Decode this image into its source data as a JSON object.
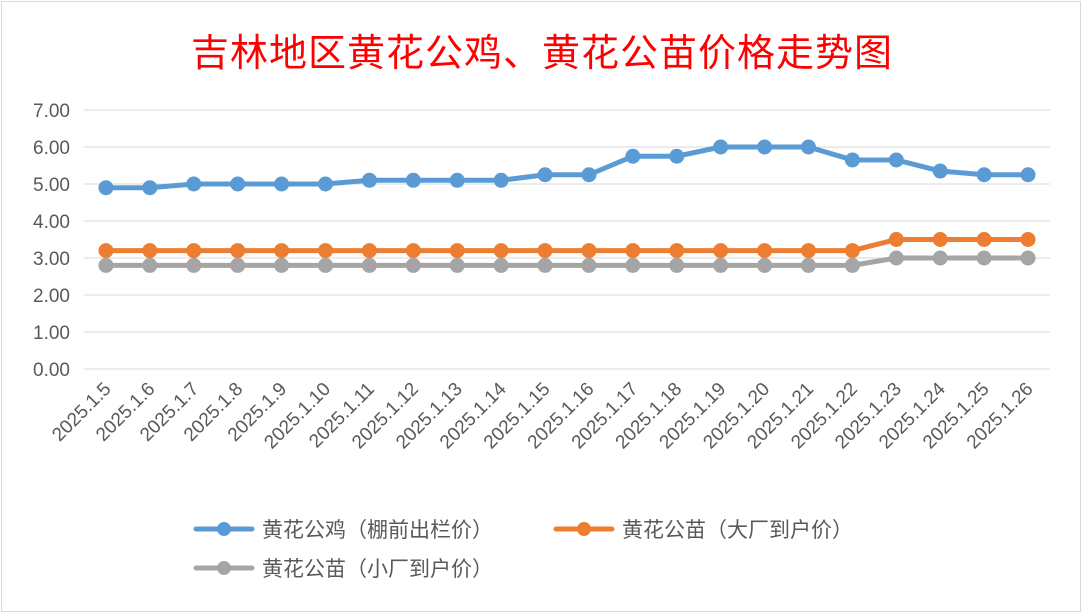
{
  "chart_data": {
    "type": "line",
    "title": "吉林地区黄花公鸡、黄花公苗价格走势图",
    "xlabel": "",
    "ylabel": "",
    "ylim": [
      0,
      7
    ],
    "yticks": [
      "0.00",
      "1.00",
      "2.00",
      "3.00",
      "4.00",
      "5.00",
      "6.00",
      "7.00"
    ],
    "grid": true,
    "legend_position": "bottom",
    "categories": [
      "2025.1.5",
      "2025.1.6",
      "2025.1.7",
      "2025.1.8",
      "2025.1.9",
      "2025.1.10",
      "2025.1.11",
      "2025.1.12",
      "2025.1.13",
      "2025.1.14",
      "2025.1.15",
      "2025.1.16",
      "2025.1.17",
      "2025.1.18",
      "2025.1.19",
      "2025.1.20",
      "2025.1.21",
      "2025.1.22",
      "2025.1.23",
      "2025.1.24",
      "2025.1.25",
      "2025.1.26"
    ],
    "series": [
      {
        "name": "黄花公鸡（棚前出栏价）",
        "color": "#5b9bd5",
        "values": [
          4.9,
          4.9,
          5.0,
          5.0,
          5.0,
          5.0,
          5.1,
          5.1,
          5.1,
          5.1,
          5.25,
          5.25,
          5.75,
          5.75,
          6.0,
          6.0,
          6.0,
          5.65,
          5.65,
          5.35,
          5.25,
          5.25
        ]
      },
      {
        "name": "黄花公苗（大厂到户价）",
        "color": "#ed7d31",
        "values": [
          3.2,
          3.2,
          3.2,
          3.2,
          3.2,
          3.2,
          3.2,
          3.2,
          3.2,
          3.2,
          3.2,
          3.2,
          3.2,
          3.2,
          3.2,
          3.2,
          3.2,
          3.2,
          3.5,
          3.5,
          3.5,
          3.5
        ]
      },
      {
        "name": "黄花公苗（小厂到户价）",
        "color": "#a5a5a5",
        "values": [
          2.8,
          2.8,
          2.8,
          2.8,
          2.8,
          2.8,
          2.8,
          2.8,
          2.8,
          2.8,
          2.8,
          2.8,
          2.8,
          2.8,
          2.8,
          2.8,
          2.8,
          2.8,
          3.0,
          3.0,
          3.0,
          3.0
        ]
      }
    ]
  }
}
